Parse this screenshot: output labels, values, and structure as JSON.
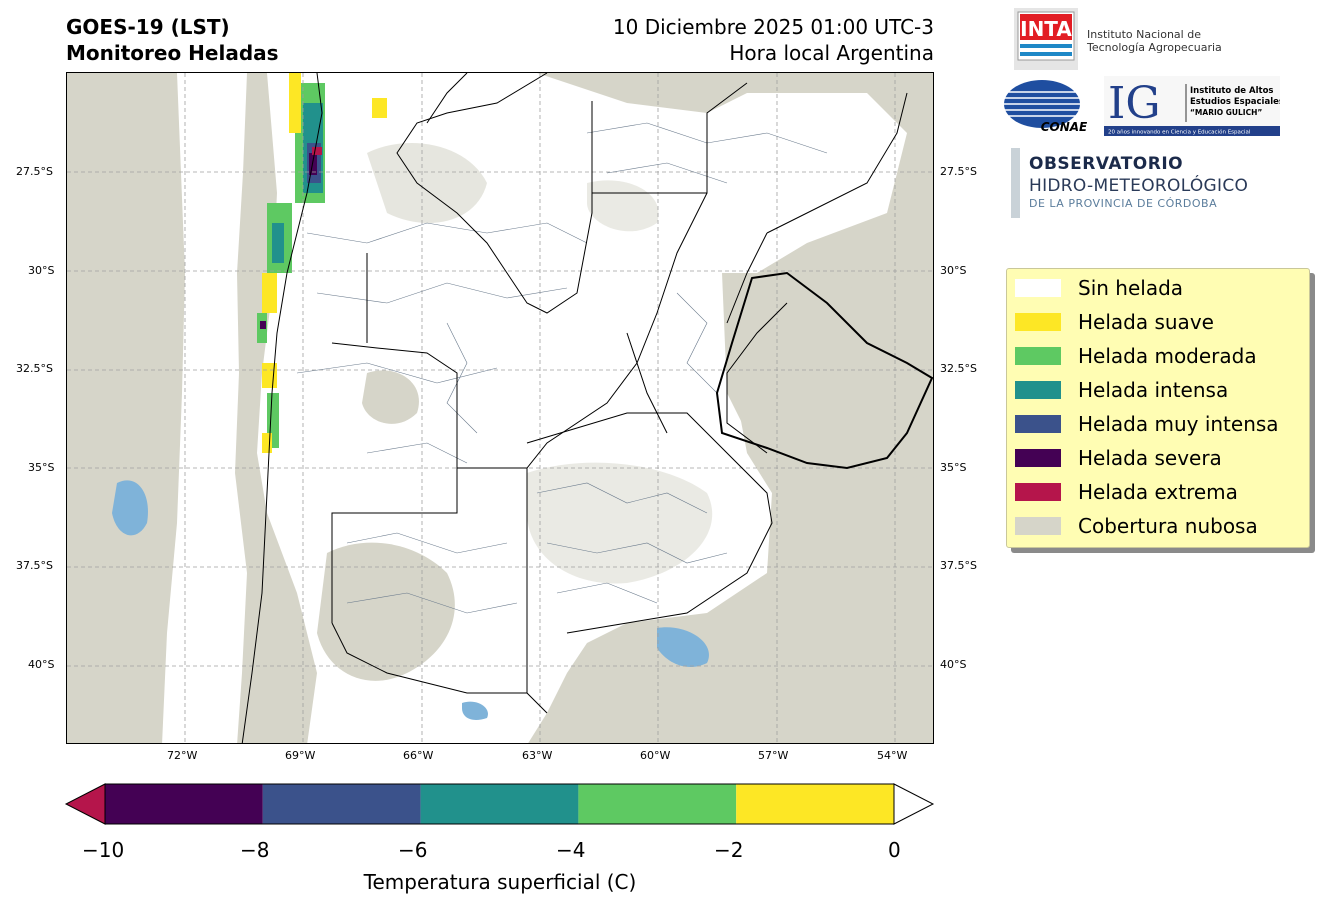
{
  "header": {
    "title_line1": "GOES-19 (LST)",
    "title_line2": "Monitoreo Heladas",
    "datetime": "10 Diciembre 2025 01:00 UTC-3",
    "timezone": "Hora local Argentina"
  },
  "map": {
    "lat_ticks": [
      "27.5°S",
      "30°S",
      "32.5°S",
      "35°S",
      "37.5°S",
      "40°S"
    ],
    "lon_ticks": [
      "72°W",
      "69°W",
      "66°W",
      "63°W",
      "60°W",
      "57°W",
      "54°W"
    ],
    "grid": true
  },
  "colorbar": {
    "label": "Temperatura superficial (C)",
    "ticks": [
      "−10",
      "−8",
      "−6",
      "−4",
      "−2",
      "0"
    ],
    "bins": [
      {
        "from": -10,
        "to": -8,
        "color": "#440154"
      },
      {
        "from": -8,
        "to": -6,
        "color": "#3b528b"
      },
      {
        "from": -6,
        "to": -4,
        "color": "#21918c"
      },
      {
        "from": -4,
        "to": -2,
        "color": "#5ec962"
      },
      {
        "from": -2,
        "to": 0,
        "color": "#fde725"
      }
    ],
    "under_color": "#b5154b",
    "over_color": "#ffffff"
  },
  "legend": {
    "items": [
      {
        "label": "Sin helada",
        "color": "#ffffff"
      },
      {
        "label": "Helada suave",
        "color": "#fde725"
      },
      {
        "label": "Helada moderada",
        "color": "#5ec962"
      },
      {
        "label": "Helada intensa",
        "color": "#21918c"
      },
      {
        "label": "Helada muy intensa",
        "color": "#3b528b"
      },
      {
        "label": "Helada severa",
        "color": "#440154"
      },
      {
        "label": "Helada extrema",
        "color": "#b5154b"
      },
      {
        "label": "Cobertura nubosa",
        "color": "#d6d5c9"
      }
    ]
  },
  "logos": {
    "inta_mark": "INTA",
    "inta_line1": "Instituto Nacional de",
    "inta_line2": "Tecnología Agropecuaria",
    "conae": "CONAE",
    "ig_mark": "IG",
    "ig_line1": "Instituto de Altos",
    "ig_line2": "Estudios Espaciales",
    "ig_line3": "“MARIO GULICH”",
    "ig_tagline": "20 años innovando en Ciencia y Educación Espacial",
    "obs_line1": "OBSERVATORIO",
    "obs_line2": "HIDRO-METEOROLÓGICO",
    "obs_line3": "DE LA PROVINCIA DE CÓRDOBA"
  }
}
